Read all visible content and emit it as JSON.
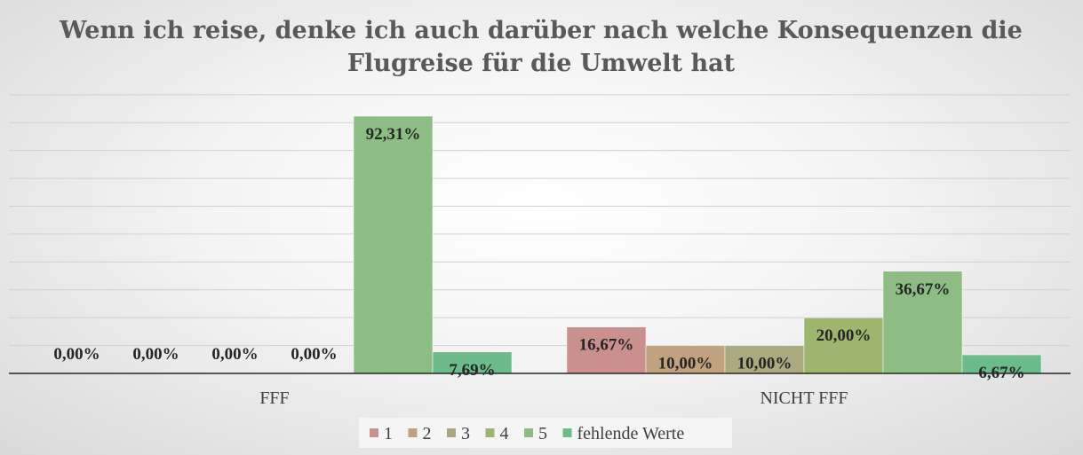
{
  "chart_data": {
    "type": "bar",
    "title": "Wenn ich reise, denke ich auch darüber nach welche Konsequenzen die Flugreise für die Umwelt hat",
    "title_lines": [
      "Wenn ich reise, denke ich auch darüber nach welche Konsequenzen die",
      "Flugreise für die Umwelt hat"
    ],
    "categories": [
      "FFF",
      "NICHT FFF"
    ],
    "series": [
      {
        "name": "1",
        "color": "#c9908e",
        "values": [
          0.0,
          16.67
        ],
        "labels": [
          "0,00%",
          "16,67%"
        ]
      },
      {
        "name": "2",
        "color": "#c0a27e",
        "values": [
          0.0,
          10.0
        ],
        "labels": [
          "0,00%",
          "10,00%"
        ]
      },
      {
        "name": "3",
        "color": "#aaa980",
        "values": [
          0.0,
          10.0
        ],
        "labels": [
          "0,00%",
          "10,00%"
        ]
      },
      {
        "name": "4",
        "color": "#9eb570",
        "values": [
          0.0,
          20.0
        ],
        "labels": [
          "0,00%",
          "20,00%"
        ]
      },
      {
        "name": "5",
        "color": "#8dbd84",
        "values": [
          92.31,
          36.67
        ],
        "labels": [
          "92,31%",
          "36,67%"
        ]
      },
      {
        "name": "fehlende Werte",
        "color": "#6dba8a",
        "values": [
          7.69,
          6.67
        ],
        "labels": [
          "7,69%",
          "6,67%"
        ]
      }
    ],
    "ylim": [
      0,
      100
    ],
    "grid": true,
    "legend": "bottom"
  }
}
